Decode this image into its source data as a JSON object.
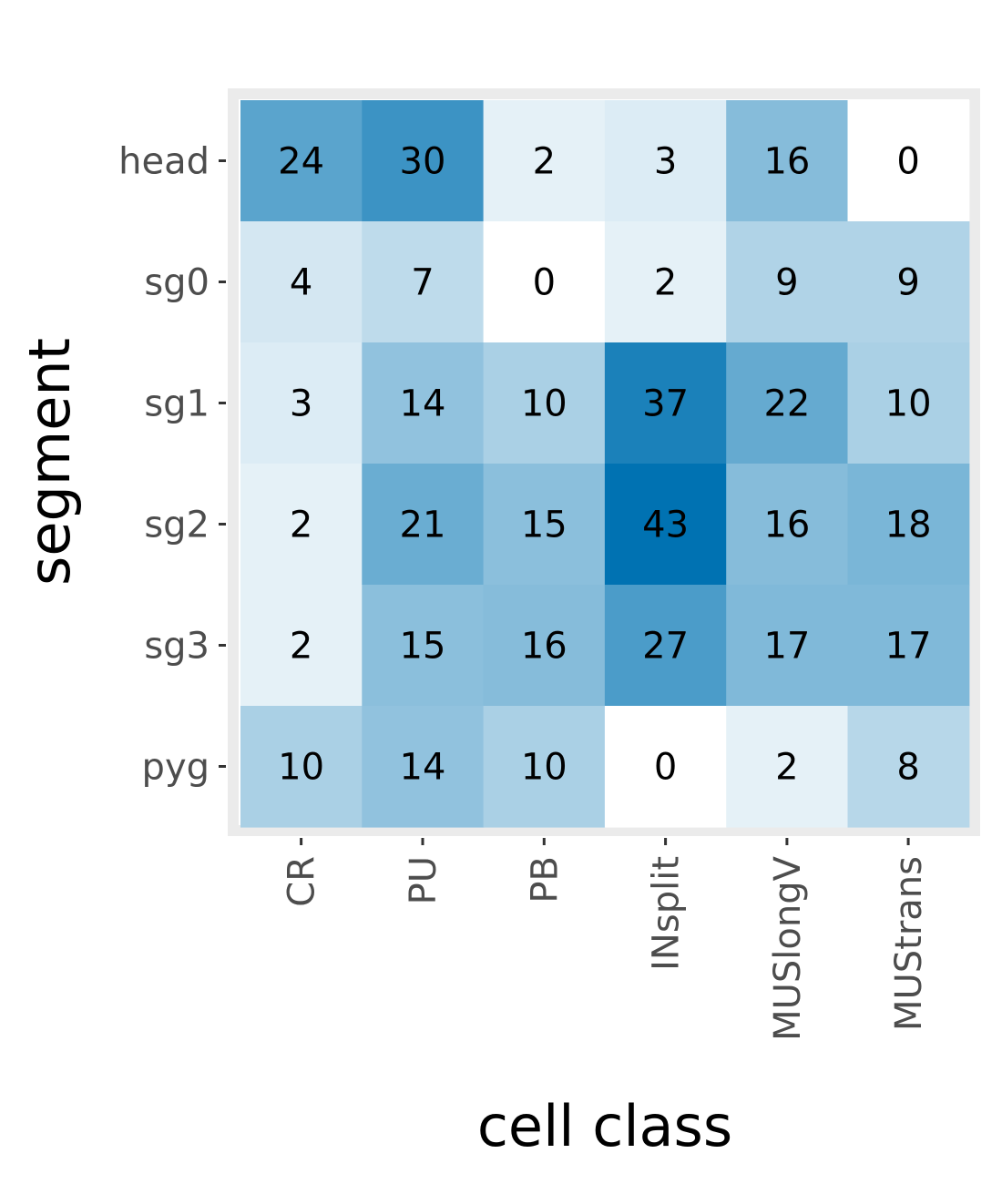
{
  "chart_data": {
    "type": "heatmap",
    "title": "",
    "xlabel": "cell class",
    "ylabel": "segment",
    "x_categories": [
      "CR",
      "PU",
      "PB",
      "INsplit",
      "MUSlongV",
      "MUStrans"
    ],
    "y_categories": [
      "head",
      "sg0",
      "sg1",
      "sg2",
      "sg3",
      "pyg"
    ],
    "values": [
      [
        24,
        30,
        2,
        3,
        16,
        0
      ],
      [
        4,
        7,
        0,
        2,
        9,
        9
      ],
      [
        3,
        14,
        10,
        37,
        22,
        10
      ],
      [
        2,
        21,
        15,
        43,
        16,
        18
      ],
      [
        2,
        15,
        16,
        27,
        17,
        17
      ],
      [
        10,
        14,
        10,
        0,
        2,
        8
      ]
    ],
    "color_min": "#ffffff",
    "color_max": "#0072b2",
    "panel_border_color": "#ebebeb",
    "grid": false,
    "legend": "none"
  }
}
